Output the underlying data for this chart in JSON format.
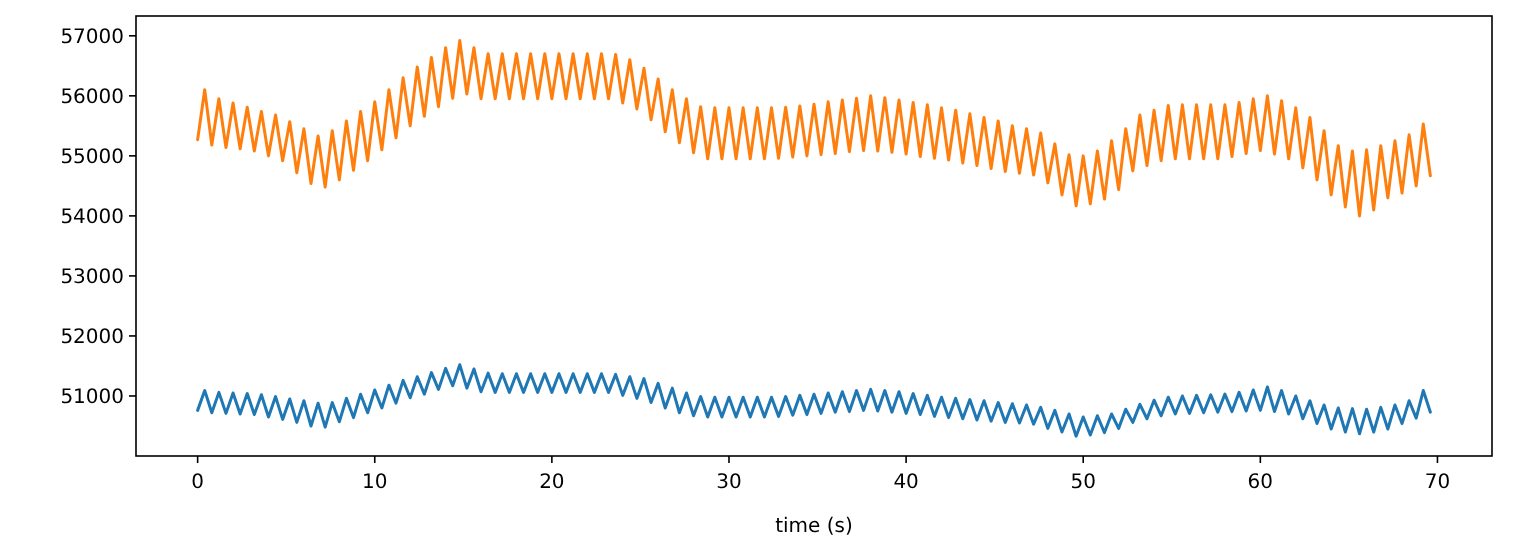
{
  "chart_data": {
    "type": "line",
    "xlabel": "time (s)",
    "x": [
      0,
      0.4,
      0.8,
      1.2,
      1.6,
      2,
      2.4,
      2.8,
      3.2,
      3.6,
      4,
      4.4,
      4.8,
      5.2,
      5.6,
      6,
      6.4,
      6.8,
      7.2,
      7.6,
      8,
      8.4,
      8.8,
      9.2,
      9.6,
      10,
      10.4,
      10.8,
      11.2,
      11.6,
      12,
      12.4,
      12.8,
      13.2,
      13.6,
      14,
      14.4,
      14.8,
      15.2,
      15.6,
      16,
      16.4,
      16.8,
      17.2,
      17.6,
      18,
      18.4,
      18.8,
      19.2,
      19.6,
      20,
      20.4,
      20.8,
      21.2,
      21.6,
      22,
      22.4,
      22.8,
      23.2,
      23.6,
      24,
      24.4,
      24.8,
      25.2,
      25.6,
      26,
      26.4,
      26.8,
      27.2,
      27.6,
      28,
      28.4,
      28.8,
      29.2,
      29.6,
      30,
      30.4,
      30.8,
      31.2,
      31.6,
      32,
      32.4,
      32.8,
      33.2,
      33.6,
      34,
      34.4,
      34.8,
      35.2,
      35.6,
      36,
      36.4,
      36.8,
      37.2,
      37.6,
      38,
      38.4,
      38.8,
      39.2,
      39.6,
      40,
      40.4,
      40.8,
      41.2,
      41.6,
      42,
      42.4,
      42.8,
      43.2,
      43.6,
      44,
      44.4,
      44.8,
      45.2,
      45.6,
      46,
      46.4,
      46.8,
      47.2,
      47.6,
      48,
      48.4,
      48.8,
      49.2,
      49.6,
      50,
      50.4,
      50.8,
      51.2,
      51.6,
      52,
      52.4,
      52.8,
      53.2,
      53.6,
      54,
      54.4,
      54.8,
      55.2,
      55.6,
      56,
      56.4,
      56.8,
      57.2,
      57.6,
      58,
      58.4,
      58.8,
      59.2,
      59.6,
      60,
      60.4,
      60.8,
      61.2,
      61.6,
      62,
      62.4,
      62.8,
      63.2,
      63.6,
      64,
      64.4,
      64.8,
      65.2,
      65.6,
      66,
      66.4,
      66.8,
      67.2,
      67.6,
      68,
      68.4,
      68.8,
      69.2,
      69.6
    ],
    "series": [
      {
        "color": "#1f77b4",
        "values": [
          50760,
          51090,
          50720,
          51060,
          50710,
          51050,
          50700,
          51040,
          50690,
          51020,
          50650,
          50990,
          50610,
          50950,
          50560,
          50920,
          50500,
          50880,
          50480,
          50890,
          50570,
          50960,
          50640,
          51030,
          50720,
          51100,
          50800,
          51180,
          50880,
          51260,
          50970,
          51320,
          51030,
          51390,
          51110,
          51460,
          51170,
          51520,
          51130,
          51450,
          51070,
          51380,
          51060,
          51370,
          51060,
          51370,
          51060,
          51370,
          51060,
          51370,
          51060,
          51370,
          51060,
          51370,
          51060,
          51370,
          51060,
          51370,
          51060,
          51360,
          51010,
          51320,
          50960,
          51290,
          50890,
          51210,
          50800,
          51130,
          50720,
          51050,
          50670,
          50990,
          50650,
          50980,
          50650,
          50980,
          50650,
          50980,
          50650,
          50980,
          50650,
          50980,
          50660,
          50990,
          50680,
          51010,
          50690,
          51030,
          50710,
          51050,
          50730,
          51070,
          50740,
          51090,
          50760,
          51110,
          50750,
          51090,
          50730,
          51070,
          50710,
          51040,
          50690,
          51010,
          50660,
          50980,
          50640,
          50960,
          50620,
          50940,
          50600,
          50920,
          50580,
          50890,
          50560,
          50870,
          50550,
          50850,
          50530,
          50810,
          50460,
          50760,
          50400,
          50700,
          50330,
          50650,
          50350,
          50670,
          50390,
          50700,
          50460,
          50780,
          50560,
          50860,
          50620,
          50930,
          50670,
          50980,
          50700,
          51000,
          50710,
          51010,
          50720,
          51020,
          50730,
          51030,
          50740,
          51060,
          50750,
          51100,
          50760,
          51150,
          50740,
          51090,
          50700,
          51000,
          50620,
          50920,
          50540,
          50850,
          50450,
          50800,
          50400,
          50790,
          50370,
          50780,
          50400,
          50810,
          50450,
          50850,
          50540,
          50920,
          50630,
          51090,
          50730
        ]
      },
      {
        "color": "#ff7f0e",
        "values": [
          55270,
          56100,
          55180,
          55950,
          55140,
          55880,
          55120,
          55810,
          55080,
          55740,
          55000,
          55680,
          54920,
          55570,
          54720,
          55450,
          54540,
          55330,
          54480,
          55420,
          54600,
          55580,
          54760,
          55740,
          54920,
          55900,
          55100,
          56100,
          55300,
          56300,
          55500,
          56480,
          55660,
          56640,
          55820,
          56800,
          55960,
          56920,
          56030,
          56800,
          55950,
          56700,
          55950,
          56700,
          55950,
          56700,
          55950,
          56700,
          55950,
          56700,
          55950,
          56700,
          55950,
          56700,
          55950,
          56700,
          55950,
          56700,
          55950,
          56690,
          55880,
          56600,
          55780,
          56460,
          55600,
          56280,
          55400,
          56100,
          55220,
          55950,
          55050,
          55820,
          54950,
          55800,
          54950,
          55800,
          54950,
          55800,
          54950,
          55800,
          54950,
          55800,
          54960,
          55810,
          54980,
          55830,
          55000,
          55860,
          55020,
          55900,
          55040,
          55930,
          55070,
          55960,
          55090,
          56000,
          55080,
          55970,
          55060,
          55930,
          55030,
          55890,
          54990,
          55850,
          54960,
          55800,
          54930,
          55760,
          54880,
          55700,
          54840,
          55640,
          54790,
          55580,
          54740,
          55500,
          54710,
          55450,
          54680,
          55380,
          54550,
          55200,
          54350,
          55020,
          54170,
          55000,
          54200,
          55080,
          54280,
          55250,
          54440,
          55450,
          54750,
          55680,
          54840,
          55760,
          54920,
          55840,
          54950,
          55850,
          54950,
          55850,
          54950,
          55850,
          54950,
          55850,
          54990,
          55890,
          55040,
          55950,
          55090,
          56000,
          55030,
          55920,
          54950,
          55800,
          54800,
          55640,
          54600,
          55420,
          54350,
          55170,
          54150,
          55080,
          54000,
          55100,
          54100,
          55170,
          54300,
          55250,
          54380,
          55350,
          54500,
          55530,
          54670
        ]
      }
    ],
    "xlim": [
      -3.48,
      73.08
    ],
    "ylim": [
      50000,
      57330
    ],
    "xticks": [
      0,
      10,
      20,
      30,
      40,
      50,
      60,
      70
    ],
    "yticks": [
      51000,
      52000,
      53000,
      54000,
      55000,
      56000,
      57000
    ]
  }
}
